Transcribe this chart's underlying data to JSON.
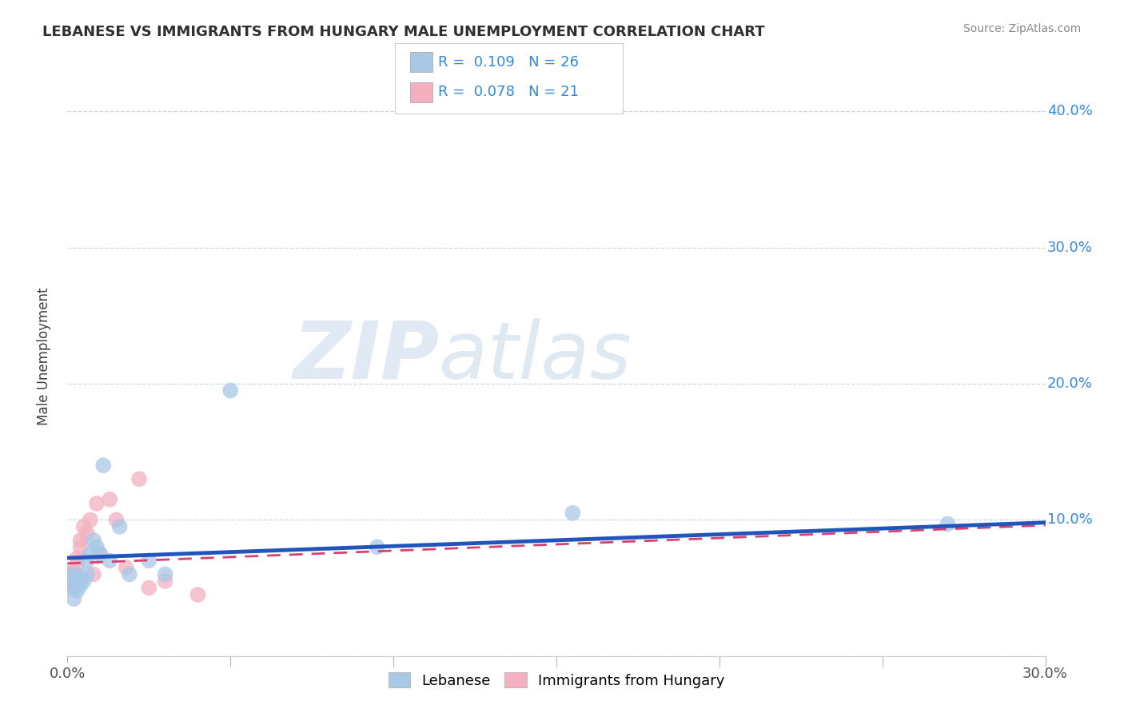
{
  "title": "LEBANESE VS IMMIGRANTS FROM HUNGARY MALE UNEMPLOYMENT CORRELATION CHART",
  "source": "Source: ZipAtlas.com",
  "ylabel": "Male Unemployment",
  "xlim": [
    0.0,
    0.3
  ],
  "ylim": [
    0.0,
    0.44
  ],
  "yticks": [
    0.0,
    0.1,
    0.2,
    0.3,
    0.4
  ],
  "ytick_labels": [
    "",
    "10.0%",
    "20.0%",
    "30.0%",
    "40.0%"
  ],
  "xticks": [
    0.0,
    0.05,
    0.1,
    0.15,
    0.2,
    0.25,
    0.3
  ],
  "xtick_labels": [
    "0.0%",
    "",
    "",
    "",
    "",
    "",
    "30.0%"
  ],
  "legend_labels": [
    "Lebanese",
    "Immigrants from Hungary"
  ],
  "r_lebanese": 0.109,
  "n_lebanese": 26,
  "r_hungary": 0.078,
  "n_hungary": 21,
  "color_lebanese": "#a8c8e8",
  "color_hungary": "#f4b0c0",
  "line_color_lebanese": "#2255bb",
  "line_color_hungary": "#d84070",
  "background_color": "#ffffff",
  "grid_color": "#c8d8e8",
  "title_color": "#303030",
  "legend_text_color": "#3388dd",
  "watermark_zip": "ZIP",
  "watermark_atlas": "atlas",
  "lebanese_x": [
    0.001,
    0.001,
    0.002,
    0.002,
    0.002,
    0.003,
    0.003,
    0.004,
    0.004,
    0.005,
    0.006,
    0.006,
    0.007,
    0.008,
    0.009,
    0.01,
    0.011,
    0.013,
    0.016,
    0.019,
    0.025,
    0.03,
    0.05,
    0.095,
    0.155,
    0.27
  ],
  "lebanese_y": [
    0.05,
    0.055,
    0.042,
    0.058,
    0.06,
    0.048,
    0.055,
    0.052,
    0.058,
    0.055,
    0.06,
    0.07,
    0.075,
    0.085,
    0.08,
    0.075,
    0.14,
    0.07,
    0.095,
    0.06,
    0.07,
    0.06,
    0.195,
    0.08,
    0.105,
    0.097
  ],
  "hungary_x": [
    0.001,
    0.001,
    0.002,
    0.002,
    0.003,
    0.003,
    0.004,
    0.004,
    0.005,
    0.006,
    0.007,
    0.008,
    0.009,
    0.01,
    0.013,
    0.015,
    0.018,
    0.022,
    0.025,
    0.03,
    0.04
  ],
  "hungary_y": [
    0.06,
    0.062,
    0.05,
    0.062,
    0.068,
    0.072,
    0.085,
    0.08,
    0.095,
    0.09,
    0.1,
    0.06,
    0.112,
    0.075,
    0.115,
    0.1,
    0.065,
    0.13,
    0.05,
    0.055,
    0.045
  ],
  "trend_leb_x0": 0.0,
  "trend_leb_y0": 0.072,
  "trend_leb_x1": 0.3,
  "trend_leb_y1": 0.098,
  "trend_hun_x0": 0.0,
  "trend_hun_y0": 0.068,
  "trend_hun_x1": 0.3,
  "trend_hun_y1": 0.096
}
